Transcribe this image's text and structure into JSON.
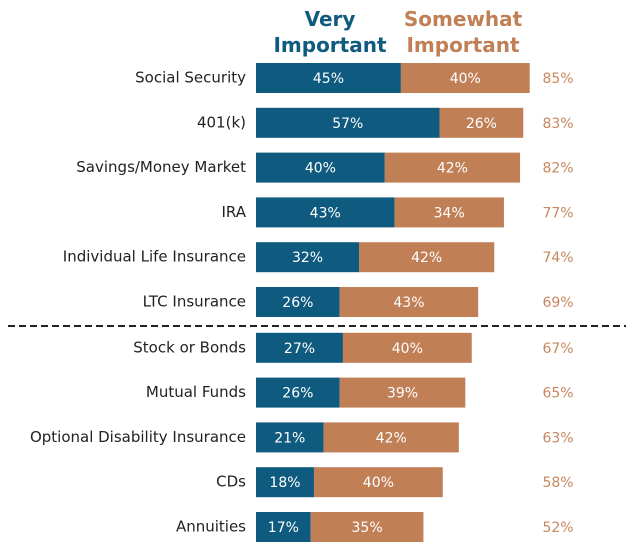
{
  "chart_data": {
    "type": "stacked-bar-horizontal",
    "categories": [
      "Social Security",
      "401(k)",
      "Savings/Money Market",
      "IRA",
      "Individual Life Insurance",
      "LTC Insurance",
      "Stock or Bonds",
      "Mutual Funds",
      "Optional Disability Insurance",
      "CDs",
      "Annuities"
    ],
    "series": [
      {
        "name": "Very Important",
        "color": "#0f5a7f",
        "values": [
          45,
          57,
          40,
          43,
          32,
          26,
          27,
          26,
          21,
          18,
          17
        ],
        "value_labels": [
          "45%",
          "57%",
          "40%",
          "43%",
          "32%",
          "26%",
          "27%",
          "26%",
          "21%",
          "18%",
          "17%"
        ]
      },
      {
        "name": "Somewhat Important",
        "color": "#c17f56",
        "values": [
          40,
          26,
          42,
          34,
          42,
          43,
          40,
          39,
          42,
          40,
          35
        ],
        "value_labels": [
          "40%",
          "26%",
          "42%",
          "34%",
          "42%",
          "43%",
          "40%",
          "39%",
          "42%",
          "40%",
          "35%"
        ]
      }
    ],
    "totals": [
      85,
      83,
      82,
      77,
      74,
      69,
      67,
      65,
      63,
      58,
      52
    ],
    "total_labels": [
      "85%",
      "83%",
      "82%",
      "77%",
      "74%",
      "69%",
      "67%",
      "65%",
      "63%",
      "58%",
      "52%"
    ],
    "total_color": "#c8875e"
  }
}
